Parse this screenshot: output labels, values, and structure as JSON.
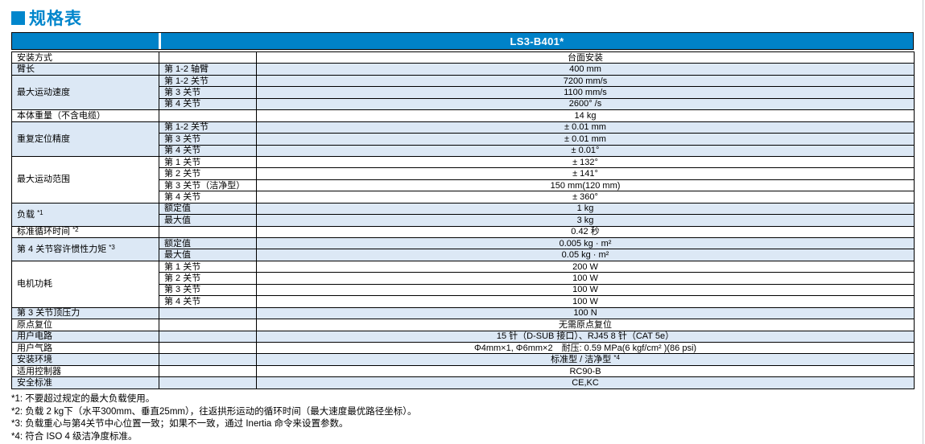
{
  "page": {
    "title": "规格表"
  },
  "colors": {
    "accent_blue": "#0086CC",
    "header_blue": "#0082C8",
    "row_shade": "#DCE8F5",
    "border": "#000000"
  },
  "table": {
    "product": "LS3-B401*",
    "rows": [
      {
        "group": "安装方式",
        "span": 1,
        "sub": "",
        "value": "台面安装",
        "shaded": false
      },
      {
        "group": "臂长",
        "span": 1,
        "sub": "第 1-2 轴臂",
        "value": "400 mm",
        "shaded": true
      },
      {
        "group": "最大运动速度",
        "span": 3,
        "sub": "第 1-2 关节",
        "value": "7200 mm/s",
        "shaded": true
      },
      {
        "sub": "第 3 关节",
        "value": "1100 mm/s",
        "shaded": true
      },
      {
        "sub": "第 4 关节",
        "value": "2600° /s",
        "shaded": true
      },
      {
        "group": "本体重量（不含电缆）",
        "span": 1,
        "sub": "",
        "value": "14 kg",
        "shaded": false
      },
      {
        "group": "重复定位精度",
        "span": 3,
        "sub": "第 1-2 关节",
        "value": "± 0.01 mm",
        "shaded": true
      },
      {
        "sub": "第 3 关节",
        "value": "± 0.01 mm",
        "shaded": true
      },
      {
        "sub": "第 4 关节",
        "value": "± 0.01°",
        "shaded": true
      },
      {
        "group": "最大运动范围",
        "span": 4,
        "sub": "第 1 关节",
        "value": "± 132°",
        "shaded": false
      },
      {
        "sub": "第 2 关节",
        "value": "± 141°",
        "shaded": false
      },
      {
        "sub": "第 3 关节（洁净型）",
        "value": "150 mm(120 mm)",
        "shaded": false
      },
      {
        "sub": "第 4 关节",
        "value": "± 360°",
        "shaded": false
      },
      {
        "group": "负载 *1",
        "span": 2,
        "sub": "额定值",
        "value": "1 kg",
        "shaded": true
      },
      {
        "sub": "最大值",
        "value": "3 kg",
        "shaded": true
      },
      {
        "group": "标准循环时间 *2",
        "span": 1,
        "sub": "",
        "value": "0.42 秒",
        "shaded": false
      },
      {
        "group": "第 4 关节容许惯性力矩 *3",
        "span": 2,
        "sub": "额定值",
        "value": "0.005 kg · m²",
        "shaded": true
      },
      {
        "sub": "最大值",
        "value": "0.05 kg · m²",
        "shaded": true
      },
      {
        "group": "电机功耗",
        "span": 4,
        "sub": "第 1 关节",
        "value": "200 W",
        "shaded": false
      },
      {
        "sub": "第 2 关节",
        "value": "100 W",
        "shaded": false
      },
      {
        "sub": "第 3 关节",
        "value": "100 W",
        "shaded": false
      },
      {
        "sub": "第 4 关节",
        "value": "100 W",
        "shaded": false
      },
      {
        "group": "第 3 关节顶压力",
        "span": 1,
        "sub": "",
        "value": "100 N",
        "shaded": true
      },
      {
        "group": "原点复位",
        "span": 1,
        "sub": "",
        "value": "无需原点复位",
        "shaded": false
      },
      {
        "group": "用户电路",
        "span": 1,
        "sub": "",
        "value": "15 针（D-SUB 接口）、RJ45 8 针（CAT 5e）",
        "shaded": true
      },
      {
        "group": "用户气路",
        "span": 1,
        "sub": "",
        "value": "Φ4mm×1, Φ6mm×2　耐压: 0.59 MPa(6 kgf/cm² )(86 psi)",
        "shaded": false
      },
      {
        "group": "安装环境",
        "span": 1,
        "sub": "",
        "value": "标准型 / 洁净型 *4",
        "shaded": true
      },
      {
        "group": "适用控制器",
        "span": 1,
        "sub": "",
        "value": "RC90-B",
        "shaded": false
      },
      {
        "group": "安全标准",
        "span": 1,
        "sub": "",
        "value": "CE,KC",
        "shaded": true
      }
    ]
  },
  "footnotes": [
    "*1: 不要超过规定的最大负载使用。",
    "*2: 负载 2 kg下（水平300mm、垂直25mm），往返拱形运动的循环时间（最大速度最优路径坐标）。",
    "*3: 负载重心与第4关节中心位置一致；如果不一致，通过 Inertia 命令来设置参数。",
    "*4: 符合 ISO 4 级洁净度标准。"
  ]
}
